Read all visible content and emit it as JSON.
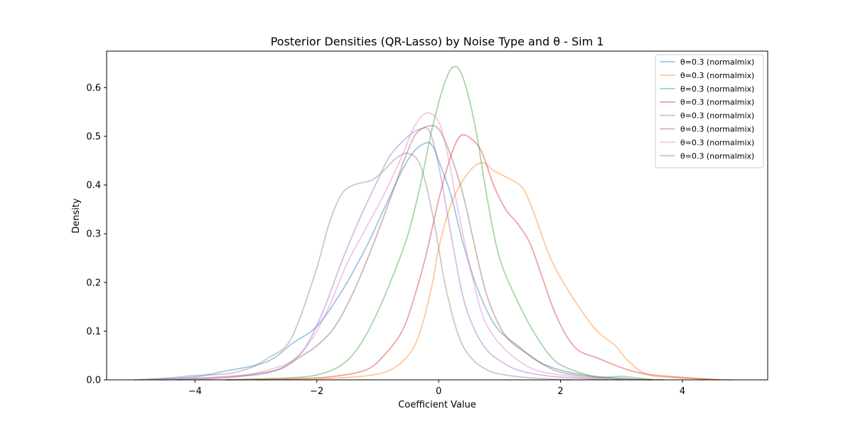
{
  "chart_data": {
    "type": "line",
    "title": "Posterior Densities (QR-Lasso) by Noise Type and θ - Sim 1",
    "xlabel": "Coefficient Value",
    "ylabel": "Density",
    "xlim": [
      -5.45,
      5.4
    ],
    "ylim": [
      0,
      0.675
    ],
    "xticks": [
      -4,
      -2,
      0,
      2,
      4
    ],
    "xtick_labels": [
      "−4",
      "−2",
      "0",
      "2",
      "4"
    ],
    "yticks": [
      0.0,
      0.1,
      0.2,
      0.3,
      0.4,
      0.5,
      0.6
    ],
    "ytick_labels": [
      "0.0",
      "0.1",
      "0.2",
      "0.3",
      "0.4",
      "0.5",
      "0.6"
    ],
    "grid": false,
    "legend_position": "top-right",
    "series": [
      {
        "name": "θ=0.3 (normalmix)",
        "color": "#1f77b4",
        "points": [
          [
            -5.0,
            0.0
          ],
          [
            -4.6,
            0.002
          ],
          [
            -4.0,
            0.006
          ],
          [
            -3.5,
            0.018
          ],
          [
            -3.0,
            0.03
          ],
          [
            -2.7,
            0.045
          ],
          [
            -2.4,
            0.075
          ],
          [
            -2.0,
            0.11
          ],
          [
            -1.6,
            0.18
          ],
          [
            -1.2,
            0.27
          ],
          [
            -0.9,
            0.35
          ],
          [
            -0.6,
            0.43
          ],
          [
            -0.4,
            0.47
          ],
          [
            -0.2,
            0.487
          ],
          [
            -0.1,
            0.48
          ],
          [
            0.0,
            0.45
          ],
          [
            0.2,
            0.38
          ],
          [
            0.4,
            0.28
          ],
          [
            0.6,
            0.2
          ],
          [
            0.8,
            0.14
          ],
          [
            1.0,
            0.1
          ],
          [
            1.3,
            0.07
          ],
          [
            1.6,
            0.04
          ],
          [
            2.0,
            0.02
          ],
          [
            2.5,
            0.008
          ],
          [
            3.0,
            0.003
          ],
          [
            3.5,
            0.0
          ]
        ]
      },
      {
        "name": "θ=0.3 (normalmix)",
        "color": "#ff7f0e",
        "points": [
          [
            -3.0,
            0.0
          ],
          [
            -2.0,
            0.002
          ],
          [
            -1.2,
            0.008
          ],
          [
            -0.8,
            0.02
          ],
          [
            -0.5,
            0.05
          ],
          [
            -0.3,
            0.1
          ],
          [
            -0.1,
            0.2
          ],
          [
            0.0,
            0.27
          ],
          [
            0.2,
            0.36
          ],
          [
            0.4,
            0.41
          ],
          [
            0.6,
            0.44
          ],
          [
            0.75,
            0.445
          ],
          [
            0.9,
            0.43
          ],
          [
            1.2,
            0.41
          ],
          [
            1.4,
            0.39
          ],
          [
            1.6,
            0.33
          ],
          [
            1.8,
            0.26
          ],
          [
            2.0,
            0.21
          ],
          [
            2.3,
            0.15
          ],
          [
            2.6,
            0.1
          ],
          [
            2.9,
            0.07
          ],
          [
            3.1,
            0.04
          ],
          [
            3.4,
            0.012
          ],
          [
            3.8,
            0.005
          ],
          [
            4.3,
            0.002
          ],
          [
            4.8,
            0.0
          ]
        ]
      },
      {
        "name": "θ=0.3 (normalmix)",
        "color": "#2ca02c",
        "points": [
          [
            -3.5,
            0.0
          ],
          [
            -2.5,
            0.004
          ],
          [
            -2.0,
            0.01
          ],
          [
            -1.6,
            0.03
          ],
          [
            -1.3,
            0.07
          ],
          [
            -1.0,
            0.14
          ],
          [
            -0.7,
            0.23
          ],
          [
            -0.5,
            0.3
          ],
          [
            -0.3,
            0.4
          ],
          [
            -0.1,
            0.52
          ],
          [
            0.1,
            0.61
          ],
          [
            0.25,
            0.643
          ],
          [
            0.4,
            0.62
          ],
          [
            0.6,
            0.52
          ],
          [
            0.8,
            0.37
          ],
          [
            1.0,
            0.25
          ],
          [
            1.3,
            0.16
          ],
          [
            1.6,
            0.09
          ],
          [
            1.9,
            0.04
          ],
          [
            2.2,
            0.02
          ],
          [
            2.6,
            0.006
          ],
          [
            3.0,
            0.007
          ],
          [
            3.4,
            0.002
          ],
          [
            3.7,
            0.0
          ]
        ]
      },
      {
        "name": "θ=0.3 (normalmix)",
        "color": "#d62728",
        "points": [
          [
            -3.5,
            0.0
          ],
          [
            -2.5,
            0.002
          ],
          [
            -1.8,
            0.006
          ],
          [
            -1.2,
            0.02
          ],
          [
            -0.9,
            0.05
          ],
          [
            -0.6,
            0.1
          ],
          [
            -0.4,
            0.17
          ],
          [
            -0.2,
            0.26
          ],
          [
            0.0,
            0.37
          ],
          [
            0.2,
            0.46
          ],
          [
            0.35,
            0.5
          ],
          [
            0.5,
            0.498
          ],
          [
            0.7,
            0.47
          ],
          [
            0.9,
            0.4
          ],
          [
            1.1,
            0.35
          ],
          [
            1.3,
            0.32
          ],
          [
            1.5,
            0.28
          ],
          [
            1.7,
            0.21
          ],
          [
            1.9,
            0.14
          ],
          [
            2.1,
            0.09
          ],
          [
            2.3,
            0.06
          ],
          [
            2.6,
            0.045
          ],
          [
            3.0,
            0.025
          ],
          [
            3.4,
            0.012
          ],
          [
            4.0,
            0.005
          ],
          [
            4.6,
            0.0
          ]
        ]
      },
      {
        "name": "θ=0.3 (normalmix)",
        "color": "#9467bd",
        "points": [
          [
            -4.6,
            0.0
          ],
          [
            -4.0,
            0.003
          ],
          [
            -3.3,
            0.008
          ],
          [
            -2.9,
            0.012
          ],
          [
            -2.5,
            0.03
          ],
          [
            -2.2,
            0.065
          ],
          [
            -1.9,
            0.14
          ],
          [
            -1.6,
            0.24
          ],
          [
            -1.3,
            0.33
          ],
          [
            -1.0,
            0.41
          ],
          [
            -0.8,
            0.46
          ],
          [
            -0.5,
            0.5
          ],
          [
            -0.3,
            0.515
          ],
          [
            -0.15,
            0.51
          ],
          [
            0.0,
            0.44
          ],
          [
            0.2,
            0.3
          ],
          [
            0.4,
            0.17
          ],
          [
            0.6,
            0.1
          ],
          [
            0.8,
            0.06
          ],
          [
            1.0,
            0.04
          ],
          [
            1.3,
            0.02
          ],
          [
            1.8,
            0.008
          ],
          [
            2.5,
            0.002
          ],
          [
            3.0,
            0.0
          ]
        ]
      },
      {
        "name": "θ=0.3 (normalmix)",
        "color": "#8c564b",
        "points": [
          [
            -4.3,
            0.0
          ],
          [
            -3.5,
            0.004
          ],
          [
            -3.0,
            0.012
          ],
          [
            -2.6,
            0.022
          ],
          [
            -2.3,
            0.045
          ],
          [
            -2.0,
            0.07
          ],
          [
            -1.7,
            0.11
          ],
          [
            -1.4,
            0.18
          ],
          [
            -1.1,
            0.27
          ],
          [
            -0.8,
            0.37
          ],
          [
            -0.6,
            0.44
          ],
          [
            -0.4,
            0.5
          ],
          [
            -0.2,
            0.52
          ],
          [
            0.0,
            0.515
          ],
          [
            0.2,
            0.46
          ],
          [
            0.4,
            0.38
          ],
          [
            0.6,
            0.27
          ],
          [
            0.8,
            0.17
          ],
          [
            1.1,
            0.09
          ],
          [
            1.5,
            0.05
          ],
          [
            1.9,
            0.02
          ],
          [
            2.4,
            0.007
          ],
          [
            3.0,
            0.002
          ],
          [
            3.5,
            0.0
          ]
        ]
      },
      {
        "name": "θ=0.3 (normalmix)",
        "color": "#e377c2",
        "points": [
          [
            -4.5,
            0.0
          ],
          [
            -3.8,
            0.004
          ],
          [
            -3.2,
            0.01
          ],
          [
            -2.8,
            0.02
          ],
          [
            -2.4,
            0.04
          ],
          [
            -2.1,
            0.08
          ],
          [
            -1.8,
            0.15
          ],
          [
            -1.5,
            0.24
          ],
          [
            -1.2,
            0.31
          ],
          [
            -0.9,
            0.38
          ],
          [
            -0.6,
            0.46
          ],
          [
            -0.4,
            0.52
          ],
          [
            -0.2,
            0.548
          ],
          [
            0.0,
            0.53
          ],
          [
            0.15,
            0.46
          ],
          [
            0.3,
            0.36
          ],
          [
            0.5,
            0.24
          ],
          [
            0.7,
            0.14
          ],
          [
            0.9,
            0.09
          ],
          [
            1.2,
            0.05
          ],
          [
            1.6,
            0.02
          ],
          [
            2.2,
            0.007
          ],
          [
            2.8,
            0.0
          ]
        ]
      },
      {
        "name": "θ=0.3 (normalmix)",
        "color": "#7f7f7f",
        "points": [
          [
            -4.9,
            0.0
          ],
          [
            -4.4,
            0.004
          ],
          [
            -4.0,
            0.009
          ],
          [
            -3.5,
            0.012
          ],
          [
            -3.2,
            0.02
          ],
          [
            -3.0,
            0.03
          ],
          [
            -2.8,
            0.045
          ],
          [
            -2.5,
            0.07
          ],
          [
            -2.3,
            0.12
          ],
          [
            -2.0,
            0.23
          ],
          [
            -1.8,
            0.32
          ],
          [
            -1.6,
            0.38
          ],
          [
            -1.4,
            0.4
          ],
          [
            -1.1,
            0.41
          ],
          [
            -0.9,
            0.43
          ],
          [
            -0.7,
            0.455
          ],
          [
            -0.5,
            0.465
          ],
          [
            -0.3,
            0.44
          ],
          [
            -0.1,
            0.34
          ],
          [
            0.1,
            0.2
          ],
          [
            0.3,
            0.1
          ],
          [
            0.5,
            0.05
          ],
          [
            0.8,
            0.02
          ],
          [
            1.2,
            0.008
          ],
          [
            1.8,
            0.002
          ],
          [
            2.2,
            0.0
          ]
        ]
      }
    ]
  }
}
